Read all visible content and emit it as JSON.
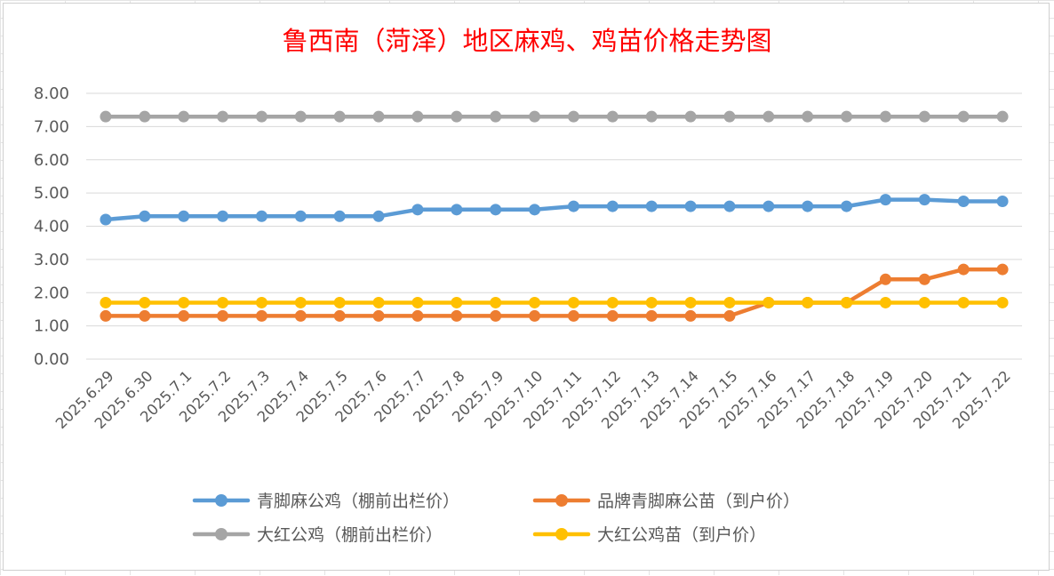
{
  "chart_data": {
    "type": "line",
    "title": "鲁西南（菏泽）地区麻鸡、鸡苗价格走势图",
    "xlabel": "",
    "ylabel": "",
    "ylim": [
      0,
      8
    ],
    "y_ticks": [
      "0.00",
      "1.00",
      "2.00",
      "3.00",
      "4.00",
      "5.00",
      "6.00",
      "7.00",
      "8.00"
    ],
    "grid": true,
    "legend_position": "bottom",
    "categories": [
      "2025.6.29",
      "2025.6.30",
      "2025.7.1",
      "2025.7.2",
      "2025.7.3",
      "2025.7.4",
      "2025.7.5",
      "2025.7.6",
      "2025.7.7",
      "2025.7.8",
      "2025.7.9",
      "2025.7.10",
      "2025.7.11",
      "2025.7.12",
      "2025.7.13",
      "2025.7.14",
      "2025.7.15",
      "2025.7.16",
      "2025.7.17",
      "2025.7.18",
      "2025.7.19",
      "2025.7.20",
      "2025.7.21",
      "2025.7.22"
    ],
    "series": [
      {
        "name": "青脚麻公鸡（棚前出栏价）",
        "color": "#5b9bd5",
        "values": [
          4.2,
          4.3,
          4.3,
          4.3,
          4.3,
          4.3,
          4.3,
          4.3,
          4.5,
          4.5,
          4.5,
          4.5,
          4.6,
          4.6,
          4.6,
          4.6,
          4.6,
          4.6,
          4.6,
          4.6,
          4.8,
          4.8,
          4.75,
          4.75
        ]
      },
      {
        "name": "品牌青脚麻公苗（到户价）",
        "color": "#ed7d31",
        "values": [
          1.3,
          1.3,
          1.3,
          1.3,
          1.3,
          1.3,
          1.3,
          1.3,
          1.3,
          1.3,
          1.3,
          1.3,
          1.3,
          1.3,
          1.3,
          1.3,
          1.3,
          1.7,
          1.7,
          1.7,
          2.4,
          2.4,
          2.7,
          2.7
        ]
      },
      {
        "name": "大红公鸡（棚前出栏价）",
        "color": "#a5a5a5",
        "values": [
          7.3,
          7.3,
          7.3,
          7.3,
          7.3,
          7.3,
          7.3,
          7.3,
          7.3,
          7.3,
          7.3,
          7.3,
          7.3,
          7.3,
          7.3,
          7.3,
          7.3,
          7.3,
          7.3,
          7.3,
          7.3,
          7.3,
          7.3,
          7.3
        ]
      },
      {
        "name": "大红公鸡苗（到户价）",
        "color": "#ffc000",
        "values": [
          1.7,
          1.7,
          1.7,
          1.7,
          1.7,
          1.7,
          1.7,
          1.7,
          1.7,
          1.7,
          1.7,
          1.7,
          1.7,
          1.7,
          1.7,
          1.7,
          1.7,
          1.7,
          1.7,
          1.7,
          1.7,
          1.7,
          1.7,
          1.7
        ]
      }
    ],
    "draw_order": [
      2,
      0,
      1,
      3
    ],
    "gridline_color": "#d9d9d9"
  }
}
